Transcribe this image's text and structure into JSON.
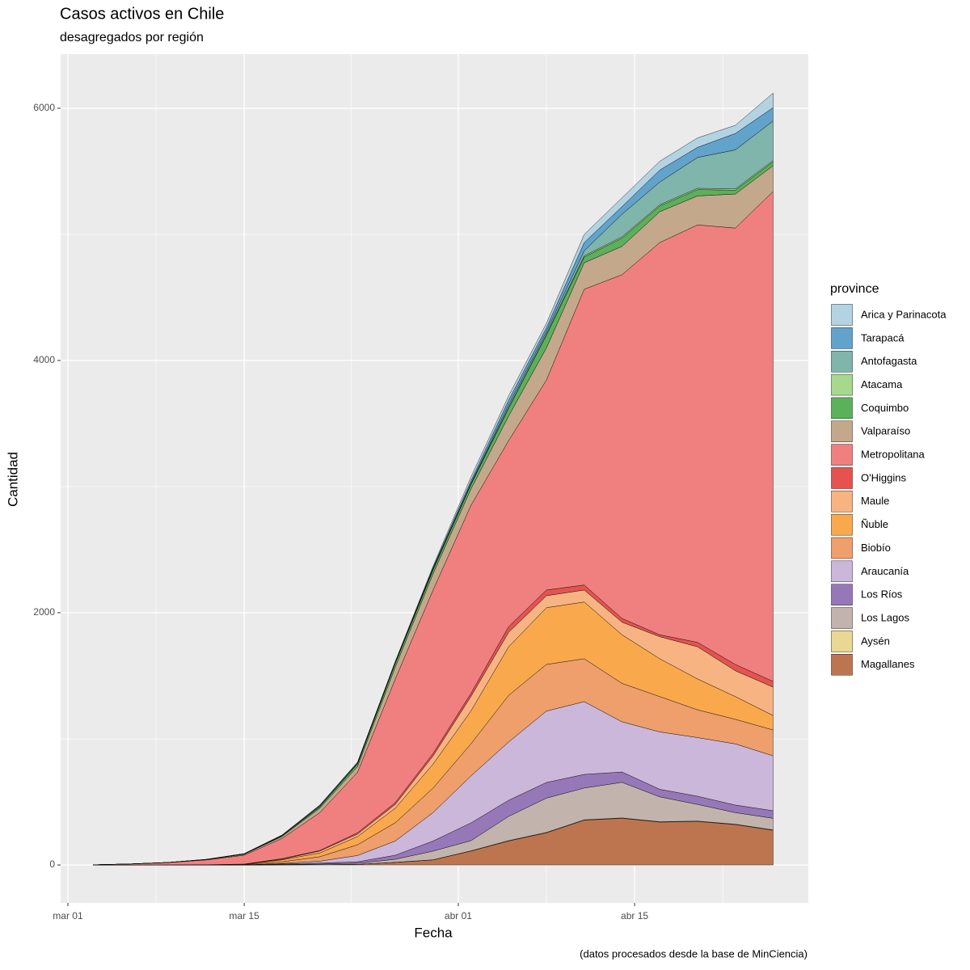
{
  "chart_data": {
    "type": "stacked-area",
    "title": "Casos activos en Chile",
    "subtitle": "desagregados por región",
    "x_label": "Fecha",
    "y_label": "Cantidad",
    "caption": "(datos procesados desde la base de MinCiencia)",
    "legend_title": "province",
    "legend_position": "right",
    "grid": true,
    "x": [
      "03-03",
      "03-06",
      "03-09",
      "03-12",
      "03-15",
      "03-18",
      "03-21",
      "03-24",
      "03-27",
      "03-30",
      "04-02",
      "04-05",
      "04-08",
      "04-11",
      "04-14",
      "04-17",
      "04-20",
      "04-23",
      "04-26"
    ],
    "xlim": [
      "02-29",
      "04-28"
    ],
    "xticks": [
      {
        "value": "03-01",
        "label": "mar 01"
      },
      {
        "value": "03-15",
        "label": "mar 15"
      },
      {
        "value": "04-01",
        "label": "abr 01"
      },
      {
        "value": "04-15",
        "label": "abr 15"
      }
    ],
    "ylim": [
      -301,
      6429
    ],
    "yticks": [
      0,
      2000,
      4000,
      6000
    ],
    "series": [
      {
        "name": "Arica y Parinacota",
        "color": "#b3d3e3",
        "values": [
          0,
          0,
          0,
          1,
          1,
          1,
          3,
          2,
          3,
          10,
          30,
          35,
          35,
          65,
          70,
          70,
          75,
          65,
          115
        ]
      },
      {
        "name": "Tarapacá",
        "color": "#62a3cc",
        "values": [
          0,
          0,
          0,
          0,
          1,
          2,
          4,
          4,
          4,
          10,
          20,
          35,
          30,
          65,
          60,
          95,
          80,
          130,
          105
        ]
      },
      {
        "name": "Antofagasta",
        "color": "#7fb5ab",
        "values": [
          0,
          0,
          0,
          1,
          2,
          3,
          6,
          6,
          5,
          5,
          5,
          20,
          20,
          40,
          180,
          180,
          245,
          310,
          315
        ]
      },
      {
        "name": "Atacama",
        "color": "#a6d88e",
        "values": [
          0,
          0,
          0,
          0,
          0,
          1,
          2,
          3,
          3,
          5,
          5,
          10,
          10,
          10,
          10,
          10,
          10,
          10,
          10
        ]
      },
      {
        "name": "Coquimbo",
        "color": "#5bb15a",
        "values": [
          0,
          0,
          0,
          0,
          1,
          5,
          10,
          20,
          30,
          30,
          35,
          60,
          100,
          45,
          65,
          45,
          50,
          30,
          30
        ]
      },
      {
        "name": "Valparaíso",
        "color": "#c4a88b",
        "values": [
          0,
          1,
          1,
          3,
          8,
          15,
          35,
          45,
          95,
          130,
          130,
          195,
          255,
          210,
          225,
          245,
          230,
          270,
          205
        ]
      },
      {
        "name": "Metropolitana",
        "color": "#f08080",
        "values": [
          1,
          7,
          18,
          38,
          70,
          160,
          300,
          480,
          980,
          1295,
          1490,
          1475,
          1665,
          2345,
          2725,
          3110,
          3310,
          3460,
          3885
        ]
      },
      {
        "name": "O'Higgins",
        "color": "#e6534f",
        "values": [
          0,
          0,
          0,
          0,
          1,
          5,
          5,
          10,
          15,
          20,
          25,
          45,
          45,
          40,
          30,
          15,
          35,
          50,
          45
        ]
      },
      {
        "name": "Maule",
        "color": "#f7b482",
        "values": [
          0,
          0,
          0,
          0,
          1,
          5,
          15,
          20,
          30,
          65,
          115,
          115,
          95,
          95,
          100,
          175,
          255,
          205,
          225
        ]
      },
      {
        "name": "Ñuble",
        "color": "#f9a94c",
        "values": [
          0,
          0,
          0,
          1,
          2,
          15,
          30,
          65,
          115,
          190,
          260,
          385,
          450,
          450,
          385,
          300,
          245,
          180,
          115
        ]
      },
      {
        "name": "Biobío",
        "color": "#ee9f6b",
        "values": [
          0,
          0,
          1,
          1,
          2,
          13,
          35,
          85,
          145,
          195,
          255,
          370,
          370,
          340,
          305,
          280,
          220,
          195,
          205
        ]
      },
      {
        "name": "Araucanía",
        "color": "#cbb7da",
        "values": [
          0,
          0,
          0,
          0,
          1,
          4,
          15,
          50,
          113,
          225,
          372,
          462,
          566,
          577,
          398,
          455,
          465,
          485,
          435
        ]
      },
      {
        "name": "Los Ríos",
        "color": "#9678b8",
        "values": [
          0,
          0,
          0,
          0,
          0,
          4,
          8,
          12,
          32,
          80,
          141,
          128,
          124,
          108,
          82,
          60,
          65,
          60,
          60
        ]
      },
      {
        "name": "Los Lagos",
        "color": "#c2b4ac",
        "values": [
          0,
          0,
          0,
          0,
          0,
          3,
          5,
          8,
          24,
          69,
          80,
          192,
          272,
          252,
          282,
          197,
          132,
          92,
          92
        ]
      },
      {
        "name": "Aysén",
        "color": "#e8d893",
        "values": [
          0,
          0,
          0,
          0,
          0,
          0,
          0,
          0,
          1,
          1,
          2,
          3,
          3,
          3,
          3,
          3,
          3,
          3,
          3
        ]
      },
      {
        "name": "Magallanes",
        "color": "#bd7550",
        "values": [
          0,
          0,
          0,
          0,
          0,
          1,
          2,
          5,
          20,
          40,
          110,
          190,
          255,
          355,
          370,
          340,
          345,
          320,
          275
        ]
      }
    ]
  }
}
